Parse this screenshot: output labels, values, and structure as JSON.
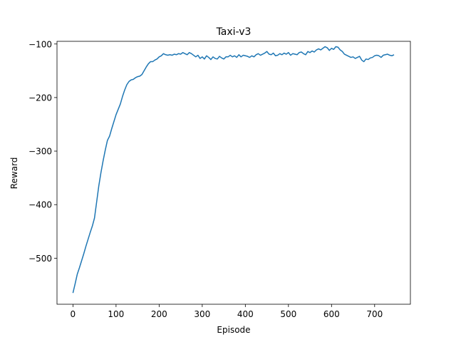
{
  "chart_data": {
    "type": "line",
    "title": "Taxi-v3",
    "xlabel": "Episode",
    "ylabel": "Reward",
    "xlim": [
      -37,
      783
    ],
    "ylim": [
      -586,
      -95
    ],
    "xticks": [
      0,
      100,
      200,
      300,
      400,
      500,
      600,
      700
    ],
    "yticks": [
      -500,
      -400,
      -300,
      -200,
      -100
    ],
    "ytick_labels": [
      "−500",
      "−400",
      "−300",
      "−200",
      "−100"
    ],
    "grid": false,
    "line_color": "#1f77b4",
    "series": [
      {
        "x": [
          0,
          5,
          10,
          15,
          20,
          25,
          30,
          35,
          40,
          45,
          50,
          55,
          60,
          65,
          70,
          75,
          80,
          85,
          90,
          95,
          100,
          105,
          110,
          115,
          120,
          125,
          130,
          135,
          140,
          145,
          150,
          155,
          160,
          165,
          170,
          175,
          180,
          185,
          190,
          195,
          200,
          205,
          210,
          215,
          220,
          225,
          230,
          235,
          240,
          245,
          250,
          255,
          260,
          265,
          270,
          275,
          280,
          285,
          290,
          295,
          300,
          305,
          310,
          315,
          320,
          325,
          330,
          335,
          340,
          345,
          350,
          355,
          360,
          365,
          370,
          375,
          380,
          385,
          390,
          395,
          400,
          405,
          410,
          415,
          420,
          425,
          430,
          435,
          440,
          445,
          450,
          455,
          460,
          465,
          470,
          475,
          480,
          485,
          490,
          495,
          500,
          505,
          510,
          515,
          520,
          525,
          530,
          535,
          540,
          545,
          550,
          555,
          560,
          565,
          570,
          575,
          580,
          585,
          590,
          595,
          600,
          605,
          610,
          615,
          620,
          625,
          630,
          635,
          640,
          645,
          650,
          655,
          660,
          665,
          670,
          675,
          680,
          685,
          690,
          695,
          700,
          705,
          710,
          715,
          720,
          725,
          730,
          735,
          740,
          745
        ],
        "values": [
          -565,
          -548,
          -530,
          -518,
          -505,
          -492,
          -478,
          -465,
          -452,
          -440,
          -425,
          -395,
          -365,
          -340,
          -318,
          -298,
          -280,
          -272,
          -258,
          -245,
          -232,
          -222,
          -212,
          -198,
          -186,
          -176,
          -170,
          -167,
          -166,
          -163,
          -161,
          -160,
          -157,
          -150,
          -143,
          -137,
          -133,
          -133,
          -130,
          -128,
          -124,
          -122,
          -118,
          -120,
          -121,
          -120,
          -121,
          -119,
          -120,
          -118,
          -119,
          -116,
          -118,
          -120,
          -116,
          -118,
          -121,
          -124,
          -121,
          -127,
          -124,
          -128,
          -122,
          -125,
          -129,
          -124,
          -127,
          -128,
          -123,
          -126,
          -128,
          -124,
          -124,
          -121,
          -124,
          -122,
          -125,
          -120,
          -124,
          -121,
          -122,
          -123,
          -125,
          -122,
          -124,
          -120,
          -118,
          -121,
          -119,
          -117,
          -114,
          -119,
          -120,
          -117,
          -122,
          -121,
          -118,
          -120,
          -117,
          -119,
          -116,
          -121,
          -118,
          -119,
          -120,
          -116,
          -115,
          -118,
          -120,
          -114,
          -116,
          -113,
          -115,
          -111,
          -109,
          -111,
          -108,
          -105,
          -107,
          -112,
          -108,
          -110,
          -105,
          -106,
          -111,
          -114,
          -119,
          -121,
          -123,
          -125,
          -124,
          -127,
          -125,
          -123,
          -130,
          -133,
          -128,
          -129,
          -126,
          -125,
          -122,
          -121,
          -122,
          -125,
          -121,
          -120,
          -119,
          -121,
          -122,
          -120
        ]
      }
    ]
  }
}
